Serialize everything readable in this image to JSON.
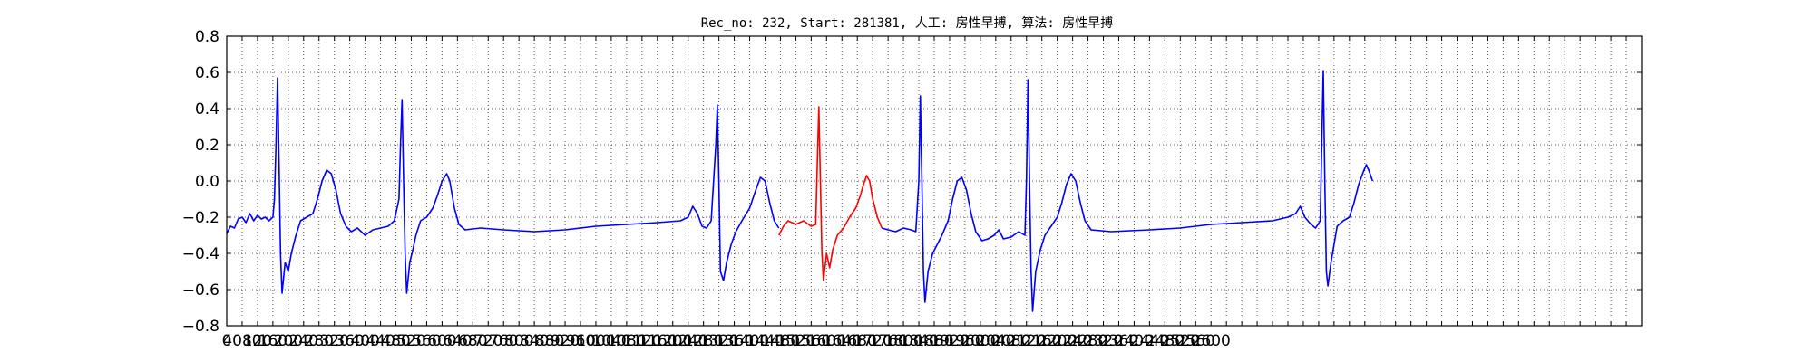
{
  "chart_data": {
    "type": "line",
    "title": "Rec_no: 232, Start: 281381, 人工: 房性早搏, 算法: 房性早搏",
    "xlabel": "",
    "ylabel": "",
    "xlim": [
      0,
      1840
    ],
    "ylim": [
      -0.8,
      0.8
    ],
    "grid": true,
    "grid_style": "dotted",
    "yticks": [
      -0.8,
      -0.6,
      -0.4,
      -0.2,
      0.0,
      0.2,
      0.4,
      0.6,
      0.8
    ],
    "ytick_labels": [
      "−0.8",
      "−0.6",
      "−0.4",
      "−0.2",
      "0.0",
      "0.2",
      "0.4",
      "0.6",
      "0.8"
    ],
    "xticks": [
      0,
      20,
      40,
      60,
      80,
      100,
      120,
      140,
      160,
      180,
      200,
      220,
      240,
      260,
      280,
      300,
      320,
      340,
      360,
      380,
      400,
      420,
      440,
      460,
      480,
      500,
      520,
      540,
      560,
      580,
      600,
      620,
      640,
      660,
      680,
      700,
      720,
      740,
      760,
      780,
      800,
      820,
      840,
      860,
      880,
      900,
      920,
      940,
      960,
      980,
      1000,
      1020,
      1040,
      1060,
      1080,
      1100,
      1120,
      1140,
      1160,
      1180,
      1200,
      1220,
      1240,
      1260,
      1280,
      1300,
      1320,
      1340,
      1360,
      1380,
      1400,
      1420,
      1440,
      1460,
      1480,
      1500,
      1520,
      1540,
      1560,
      1580,
      1600,
      1620,
      1640,
      1660,
      1680,
      1700,
      1720,
      1740,
      1760,
      1780,
      1800,
      1820,
      1840
    ],
    "xtick_labels": [
      "0",
      "4080",
      "120",
      "160",
      "200",
      "240",
      "280",
      "320",
      "360",
      "400",
      "440",
      "480",
      "520",
      "560",
      "600",
      "640",
      "680",
      "720",
      "760",
      "800",
      "840",
      "880",
      "920",
      "960",
      "1000",
      "1040",
      "1080",
      "1120",
      "1160",
      "1200",
      "1240",
      "1280",
      "1320",
      "1360",
      "1400",
      "1440",
      "1480",
      "1520",
      "1560",
      "1600",
      "1640",
      "1680",
      "1720",
      "1760",
      "1800",
      "1840",
      "1880",
      "1920",
      "1960",
      "2000",
      "2040",
      "2080",
      "2120",
      "2160",
      "2200",
      "2240",
      "2280",
      "2320",
      "2360",
      "2400",
      "2440",
      "2480",
      "2520",
      "2560",
      "2600"
    ],
    "xtick_label_positions": [
      0,
      40,
      80,
      120,
      160,
      200,
      240,
      280,
      320,
      360,
      400,
      440,
      480,
      520,
      560,
      600,
      640,
      680,
      720,
      760,
      800,
      840,
      880,
      920,
      960,
      1000,
      1040,
      1080,
      1120,
      1160,
      1200,
      1240,
      1280,
      1320,
      1360,
      1400,
      1440,
      1480,
      1520,
      1560,
      1600,
      1640,
      1680,
      1720,
      1760,
      1800,
      1840,
      1880,
      1920,
      1960,
      2000,
      2040,
      2080,
      2120,
      2160,
      2200,
      2240,
      2280,
      2320,
      2360,
      2400,
      2440,
      2480,
      2520,
      2560,
      2600
    ],
    "series": [
      {
        "color": "#0000ff",
        "points": [
          [
            0,
            -0.29
          ],
          [
            5,
            -0.25
          ],
          [
            10,
            -0.26
          ],
          [
            15,
            -0.21
          ],
          [
            20,
            -0.2
          ],
          [
            25,
            -0.23
          ],
          [
            30,
            -0.18
          ],
          [
            35,
            -0.22
          ],
          [
            40,
            -0.19
          ],
          [
            45,
            -0.21
          ],
          [
            50,
            -0.2
          ],
          [
            55,
            -0.22
          ],
          [
            60,
            -0.2
          ],
          [
            62,
            -0.1
          ],
          [
            64,
            0.2
          ],
          [
            66,
            0.57
          ],
          [
            68,
            0.1
          ],
          [
            70,
            -0.4
          ],
          [
            72,
            -0.62
          ],
          [
            76,
            -0.45
          ],
          [
            80,
            -0.5
          ],
          [
            84,
            -0.4
          ],
          [
            90,
            -0.3
          ],
          [
            96,
            -0.22
          ],
          [
            104,
            -0.2
          ],
          [
            112,
            -0.18
          ],
          [
            118,
            -0.1
          ],
          [
            124,
            0.0
          ],
          [
            130,
            0.06
          ],
          [
            136,
            0.04
          ],
          [
            142,
            -0.05
          ],
          [
            148,
            -0.18
          ],
          [
            155,
            -0.25
          ],
          [
            162,
            -0.28
          ],
          [
            170,
            -0.26
          ],
          [
            180,
            -0.3
          ],
          [
            190,
            -0.27
          ],
          [
            200,
            -0.26
          ],
          [
            210,
            -0.25
          ],
          [
            218,
            -0.22
          ],
          [
            224,
            -0.1
          ],
          [
            226,
            0.2
          ],
          [
            228,
            0.45
          ],
          [
            230,
            0.0
          ],
          [
            232,
            -0.4
          ],
          [
            234,
            -0.62
          ],
          [
            238,
            -0.45
          ],
          [
            242,
            -0.38
          ],
          [
            246,
            -0.3
          ],
          [
            252,
            -0.22
          ],
          [
            260,
            -0.2
          ],
          [
            268,
            -0.15
          ],
          [
            274,
            -0.08
          ],
          [
            280,
            0.0
          ],
          [
            286,
            0.04
          ],
          [
            290,
            0.0
          ],
          [
            296,
            -0.15
          ],
          [
            302,
            -0.24
          ],
          [
            310,
            -0.27
          ],
          [
            330,
            -0.26
          ],
          [
            360,
            -0.27
          ],
          [
            400,
            -0.28
          ],
          [
            440,
            -0.27
          ],
          [
            480,
            -0.25
          ],
          [
            520,
            -0.24
          ],
          [
            560,
            -0.23
          ],
          [
            590,
            -0.22
          ],
          [
            600,
            -0.2
          ],
          [
            606,
            -0.14
          ],
          [
            612,
            -0.18
          ],
          [
            618,
            -0.25
          ],
          [
            624,
            -0.26
          ],
          [
            630,
            -0.22
          ],
          [
            636,
            0.2
          ],
          [
            638,
            0.42
          ],
          [
            640,
            0.0
          ],
          [
            642,
            -0.5
          ],
          [
            646,
            -0.55
          ],
          [
            650,
            -0.45
          ],
          [
            656,
            -0.35
          ],
          [
            662,
            -0.28
          ],
          [
            670,
            -0.22
          ],
          [
            680,
            -0.15
          ],
          [
            688,
            -0.05
          ],
          [
            694,
            0.02
          ],
          [
            700,
            0.0
          ],
          [
            706,
            -0.12
          ],
          [
            712,
            -0.22
          ],
          [
            718,
            -0.26
          ]
        ]
      },
      {
        "color": "#ff0000",
        "points": [
          [
            718,
            -0.3
          ],
          [
            724,
            -0.25
          ],
          [
            730,
            -0.22
          ],
          [
            740,
            -0.24
          ],
          [
            750,
            -0.22
          ],
          [
            760,
            -0.25
          ],
          [
            766,
            -0.24
          ],
          [
            768,
            0.1
          ],
          [
            770,
            0.41
          ],
          [
            772,
            0.0
          ],
          [
            774,
            -0.4
          ],
          [
            776,
            -0.55
          ],
          [
            780,
            -0.4
          ],
          [
            784,
            -0.48
          ],
          [
            788,
            -0.38
          ],
          [
            794,
            -0.3
          ],
          [
            802,
            -0.26
          ],
          [
            810,
            -0.2
          ],
          [
            818,
            -0.15
          ],
          [
            824,
            -0.08
          ],
          [
            828,
            -0.02
          ],
          [
            832,
            0.03
          ],
          [
            836,
            0.0
          ],
          [
            840,
            -0.1
          ],
          [
            846,
            -0.2
          ],
          [
            852,
            -0.26
          ]
        ]
      },
      {
        "color": "#0000ff",
        "points": [
          [
            852,
            -0.26
          ],
          [
            860,
            -0.27
          ],
          [
            870,
            -0.28
          ],
          [
            880,
            -0.26
          ],
          [
            890,
            -0.27
          ],
          [
            896,
            -0.28
          ],
          [
            900,
            0.0
          ],
          [
            902,
            0.47
          ],
          [
            904,
            0.0
          ],
          [
            906,
            -0.5
          ],
          [
            908,
            -0.67
          ],
          [
            912,
            -0.5
          ],
          [
            918,
            -0.4
          ],
          [
            924,
            -0.35
          ],
          [
            930,
            -0.3
          ],
          [
            938,
            -0.22
          ],
          [
            944,
            -0.1
          ],
          [
            950,
            0.0
          ],
          [
            956,
            0.02
          ],
          [
            962,
            -0.05
          ],
          [
            968,
            -0.18
          ],
          [
            974,
            -0.28
          ],
          [
            982,
            -0.33
          ],
          [
            990,
            -0.32
          ],
          [
            998,
            -0.3
          ],
          [
            1004,
            -0.27
          ],
          [
            1010,
            -0.32
          ],
          [
            1020,
            -0.31
          ],
          [
            1030,
            -0.28
          ],
          [
            1038,
            -0.3
          ],
          [
            1040,
            0.0
          ],
          [
            1042,
            0.56
          ],
          [
            1044,
            0.0
          ],
          [
            1046,
            -0.5
          ],
          [
            1048,
            -0.72
          ],
          [
            1052,
            -0.5
          ],
          [
            1058,
            -0.38
          ],
          [
            1064,
            -0.3
          ],
          [
            1072,
            -0.25
          ],
          [
            1080,
            -0.2
          ],
          [
            1086,
            -0.12
          ],
          [
            1092,
            -0.02
          ],
          [
            1098,
            0.04
          ],
          [
            1104,
            0.0
          ],
          [
            1110,
            -0.12
          ],
          [
            1116,
            -0.22
          ],
          [
            1124,
            -0.27
          ],
          [
            1150,
            -0.28
          ],
          [
            1200,
            -0.27
          ],
          [
            1240,
            -0.26
          ],
          [
            1280,
            -0.24
          ],
          [
            1320,
            -0.23
          ],
          [
            1360,
            -0.22
          ],
          [
            1380,
            -0.2
          ],
          [
            1390,
            -0.18
          ],
          [
            1396,
            -0.14
          ],
          [
            1402,
            -0.2
          ],
          [
            1410,
            -0.24
          ],
          [
            1416,
            -0.26
          ],
          [
            1422,
            -0.22
          ],
          [
            1424,
            0.2
          ],
          [
            1426,
            0.61
          ],
          [
            1428,
            0.0
          ],
          [
            1430,
            -0.5
          ],
          [
            1432,
            -0.58
          ],
          [
            1436,
            -0.45
          ],
          [
            1440,
            -0.35
          ],
          [
            1444,
            -0.25
          ],
          [
            1452,
            -0.22
          ],
          [
            1460,
            -0.2
          ],
          [
            1466,
            -0.12
          ],
          [
            1472,
            -0.02
          ],
          [
            1478,
            0.05
          ],
          [
            1482,
            0.09
          ],
          [
            1486,
            0.05
          ],
          [
            1490,
            0.0
          ]
        ]
      }
    ]
  }
}
